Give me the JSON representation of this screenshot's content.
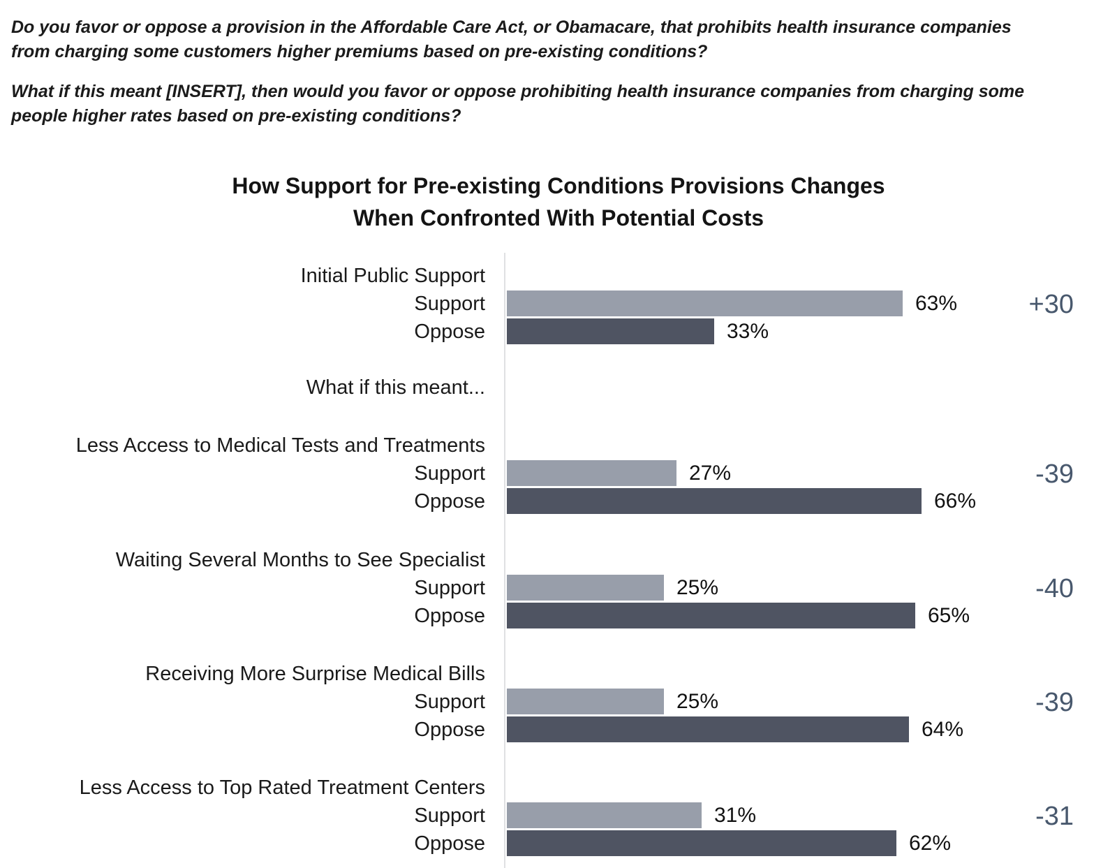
{
  "questions": {
    "q1": "Do you favor or oppose a provision in the Affordable Care Act, or Obamacare, that prohibits health insurance companies from charging some customers higher premiums based on pre-existing conditions?",
    "q2": "What if this meant [INSERT], then would you favor or oppose prohibiting health insurance companies from charging some people higher rates based on pre-existing conditions?"
  },
  "chart_data": {
    "type": "bar",
    "orientation": "horizontal",
    "title_line1": "How Support for Pre-existing Conditions Provisions Changes",
    "title_line2": "When Confronted With Potential Costs",
    "interstitial_label": "What if this meant...",
    "series_labels": {
      "support": "Support",
      "oppose": "Oppose"
    },
    "value_suffix": "%",
    "xlim": [
      0,
      100
    ],
    "legend": "none",
    "grid": "off",
    "groups": [
      {
        "category": "Initial Public Support",
        "support": 63,
        "oppose": 33,
        "delta": "+30"
      },
      {
        "category": "Less Access to Medical Tests and Treatments",
        "support": 27,
        "oppose": 66,
        "delta": "-39"
      },
      {
        "category": "Waiting Several Months to See Specialist",
        "support": 25,
        "oppose": 65,
        "delta": "-40"
      },
      {
        "category": "Receiving More Surprise Medical Bills",
        "support": 25,
        "oppose": 64,
        "delta": "-39"
      },
      {
        "category": "Less Access to Top Rated Treatment Centers",
        "support": 31,
        "oppose": 62,
        "delta": "-31"
      }
    ],
    "colors": {
      "support_bar": "#989EAA",
      "oppose_bar": "#4F5462",
      "delta_text": "#48586D",
      "axis_line": "#DFE0E2"
    }
  }
}
